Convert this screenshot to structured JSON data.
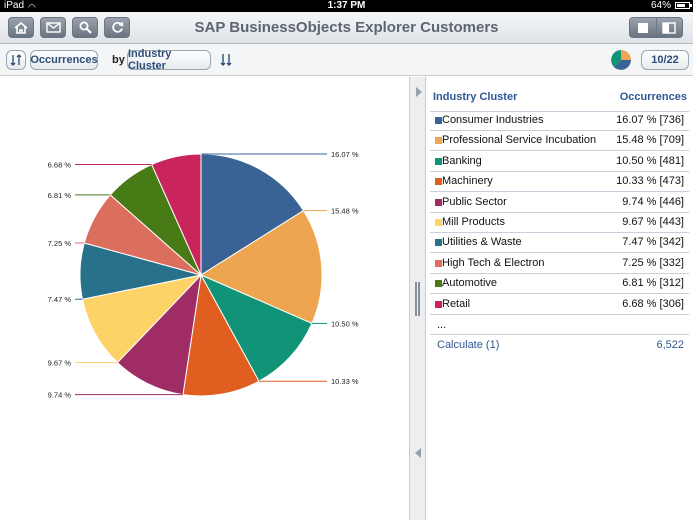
{
  "status": {
    "carrier": "iPad",
    "time": "1:37 PM",
    "battery": "64%"
  },
  "header": {
    "title": "SAP BusinessObjects Explorer Customers"
  },
  "toolbar": {
    "measure": "Occurrences",
    "by": "by",
    "dimension": "Industry Cluster",
    "page": "10/22"
  },
  "table": {
    "col_dimension": "Industry Cluster",
    "col_measure": "Occurrences",
    "rows": [
      {
        "label": "Consumer Industries",
        "value": "16.07 % [736]",
        "color": "#3a6395"
      },
      {
        "label": "Professional Service Incubation",
        "value": "15.48 % [709]",
        "color": "#eea550"
      },
      {
        "label": "Banking",
        "value": "10.50 % [481]",
        "color": "#109377"
      },
      {
        "label": "Machinery",
        "value": "10.33 % [473]",
        "color": "#e05e20"
      },
      {
        "label": "Public Sector",
        "value": "9.74 % [446]",
        "color": "#a02c66"
      },
      {
        "label": "Mill Products",
        "value": "9.67 % [443]",
        "color": "#fdd368"
      },
      {
        "label": "Utilities & Waste",
        "value": "7.47 % [342]",
        "color": "#28718b"
      },
      {
        "label": "High Tech & Electron",
        "value": "7.25 % [332]",
        "color": "#dc6e5e"
      },
      {
        "label": "Automotive",
        "value": "6.81 % [312]",
        "color": "#487a15"
      },
      {
        "label": "Retail",
        "value": "6.68 % [306]",
        "color": "#c9245c"
      }
    ],
    "more": "...",
    "calc_label": "Calculate (1)",
    "calc_value": "6,522"
  },
  "chart_data": {
    "type": "pie",
    "slices": [
      {
        "label": "16.07 %",
        "value": 16.07,
        "color": "#3a6395"
      },
      {
        "label": "15.48 %",
        "value": 15.48,
        "color": "#eea550"
      },
      {
        "label": "10.50 %",
        "value": 10.5,
        "color": "#109377"
      },
      {
        "label": "10.33 %",
        "value": 10.33,
        "color": "#e05e20"
      },
      {
        "label": "9.74 %",
        "value": 9.74,
        "color": "#a02c66"
      },
      {
        "label": "9.67 %",
        "value": 9.67,
        "color": "#fdd368"
      },
      {
        "label": "7.47 %",
        "value": 7.47,
        "color": "#28718b"
      },
      {
        "label": "7.25 %",
        "value": 7.25,
        "color": "#dc6e5e"
      },
      {
        "label": "6.81 %",
        "value": 6.81,
        "color": "#487a15"
      },
      {
        "label": "6.68 %",
        "value": 6.68,
        "color": "#c9245c"
      }
    ]
  }
}
